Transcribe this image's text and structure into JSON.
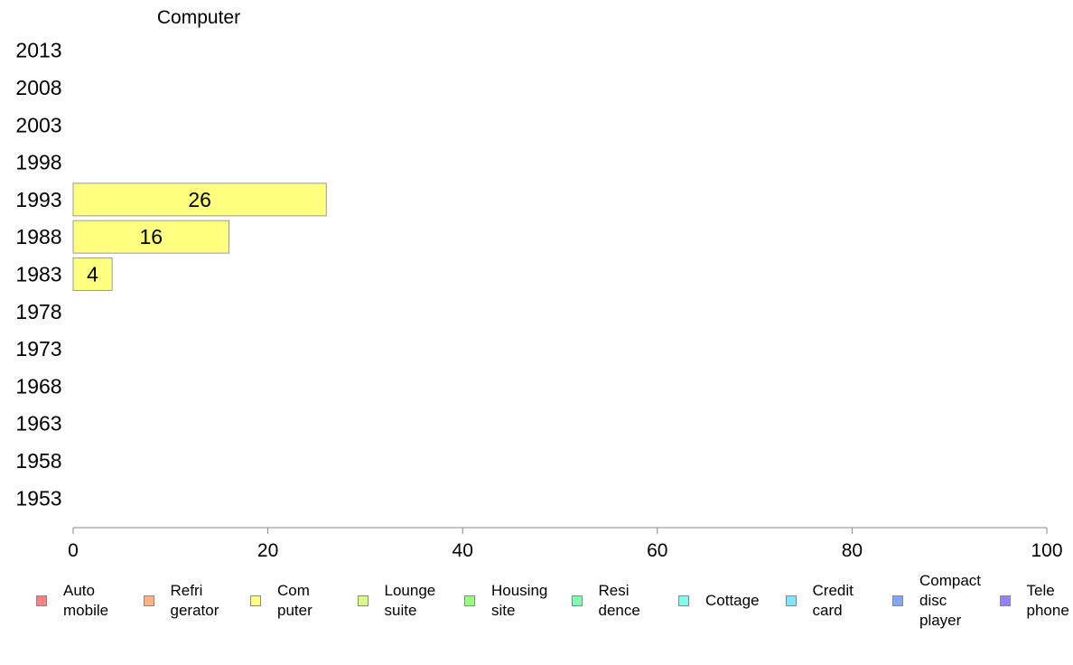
{
  "chart_data": {
    "type": "bar",
    "orientation": "horizontal",
    "title": "Computer",
    "categories": [
      "2013",
      "2008",
      "2003",
      "1998",
      "1993",
      "1988",
      "1983",
      "1978",
      "1973",
      "1968",
      "1963",
      "1958",
      "1953"
    ],
    "series": [
      {
        "name": "Computer",
        "color": "#ffff80",
        "values": [
          null,
          null,
          null,
          null,
          26,
          16,
          4,
          null,
          null,
          null,
          null,
          null,
          null
        ]
      }
    ],
    "data_labels": [
      "",
      "",
      "",
      "",
      "26",
      "16",
      "4",
      "",
      "",
      "",
      "",
      "",
      ""
    ],
    "xlim": [
      0,
      100
    ],
    "xticks": [
      "0",
      "20",
      "40",
      "60",
      "80",
      "100"
    ],
    "grid": false,
    "legend_position": "bottom"
  },
  "legend": [
    {
      "label": "Auto\nmobile",
      "color": "#ff8080"
    },
    {
      "label": "Refri\ngerator",
      "color": "#ffb380"
    },
    {
      "label": "Com\nputer",
      "color": "#ffff80"
    },
    {
      "label": "Lounge\nsuite",
      "color": "#d9ff80"
    },
    {
      "label": "Housing\nsite",
      "color": "#99ff80"
    },
    {
      "label": "Resi\ndence",
      "color": "#80ffb3"
    },
    {
      "label": "Cottage",
      "color": "#80ffee"
    },
    {
      "label": "Credit\ncard",
      "color": "#80e6ff"
    },
    {
      "label": "Compact\ndisc\nplayer",
      "color": "#80a6ff"
    },
    {
      "label": "Tele\nphone",
      "color": "#9980ff"
    }
  ]
}
